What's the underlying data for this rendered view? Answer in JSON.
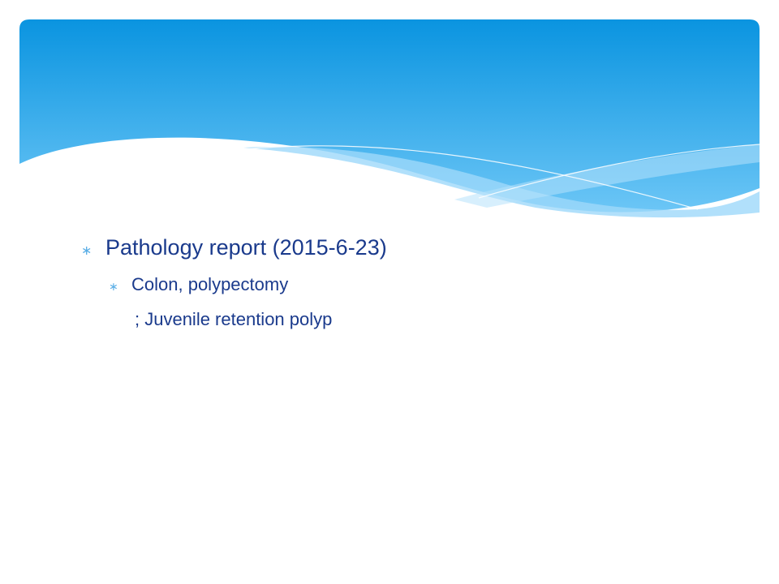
{
  "slide": {
    "colors": {
      "banner_top": "#0a94e0",
      "banner_bottom": "#6cc6f6",
      "wave_light": "#9ed8fa",
      "text": "#1a3a8c",
      "bullet": "#5aaee6"
    },
    "bullets": [
      {
        "text": "Pathology report (2015-6-23)",
        "children": [
          {
            "text": "Colon, polypectomy",
            "continuation": "; Juvenile retention polyp"
          }
        ]
      }
    ],
    "bullet_symbol": "∗"
  }
}
